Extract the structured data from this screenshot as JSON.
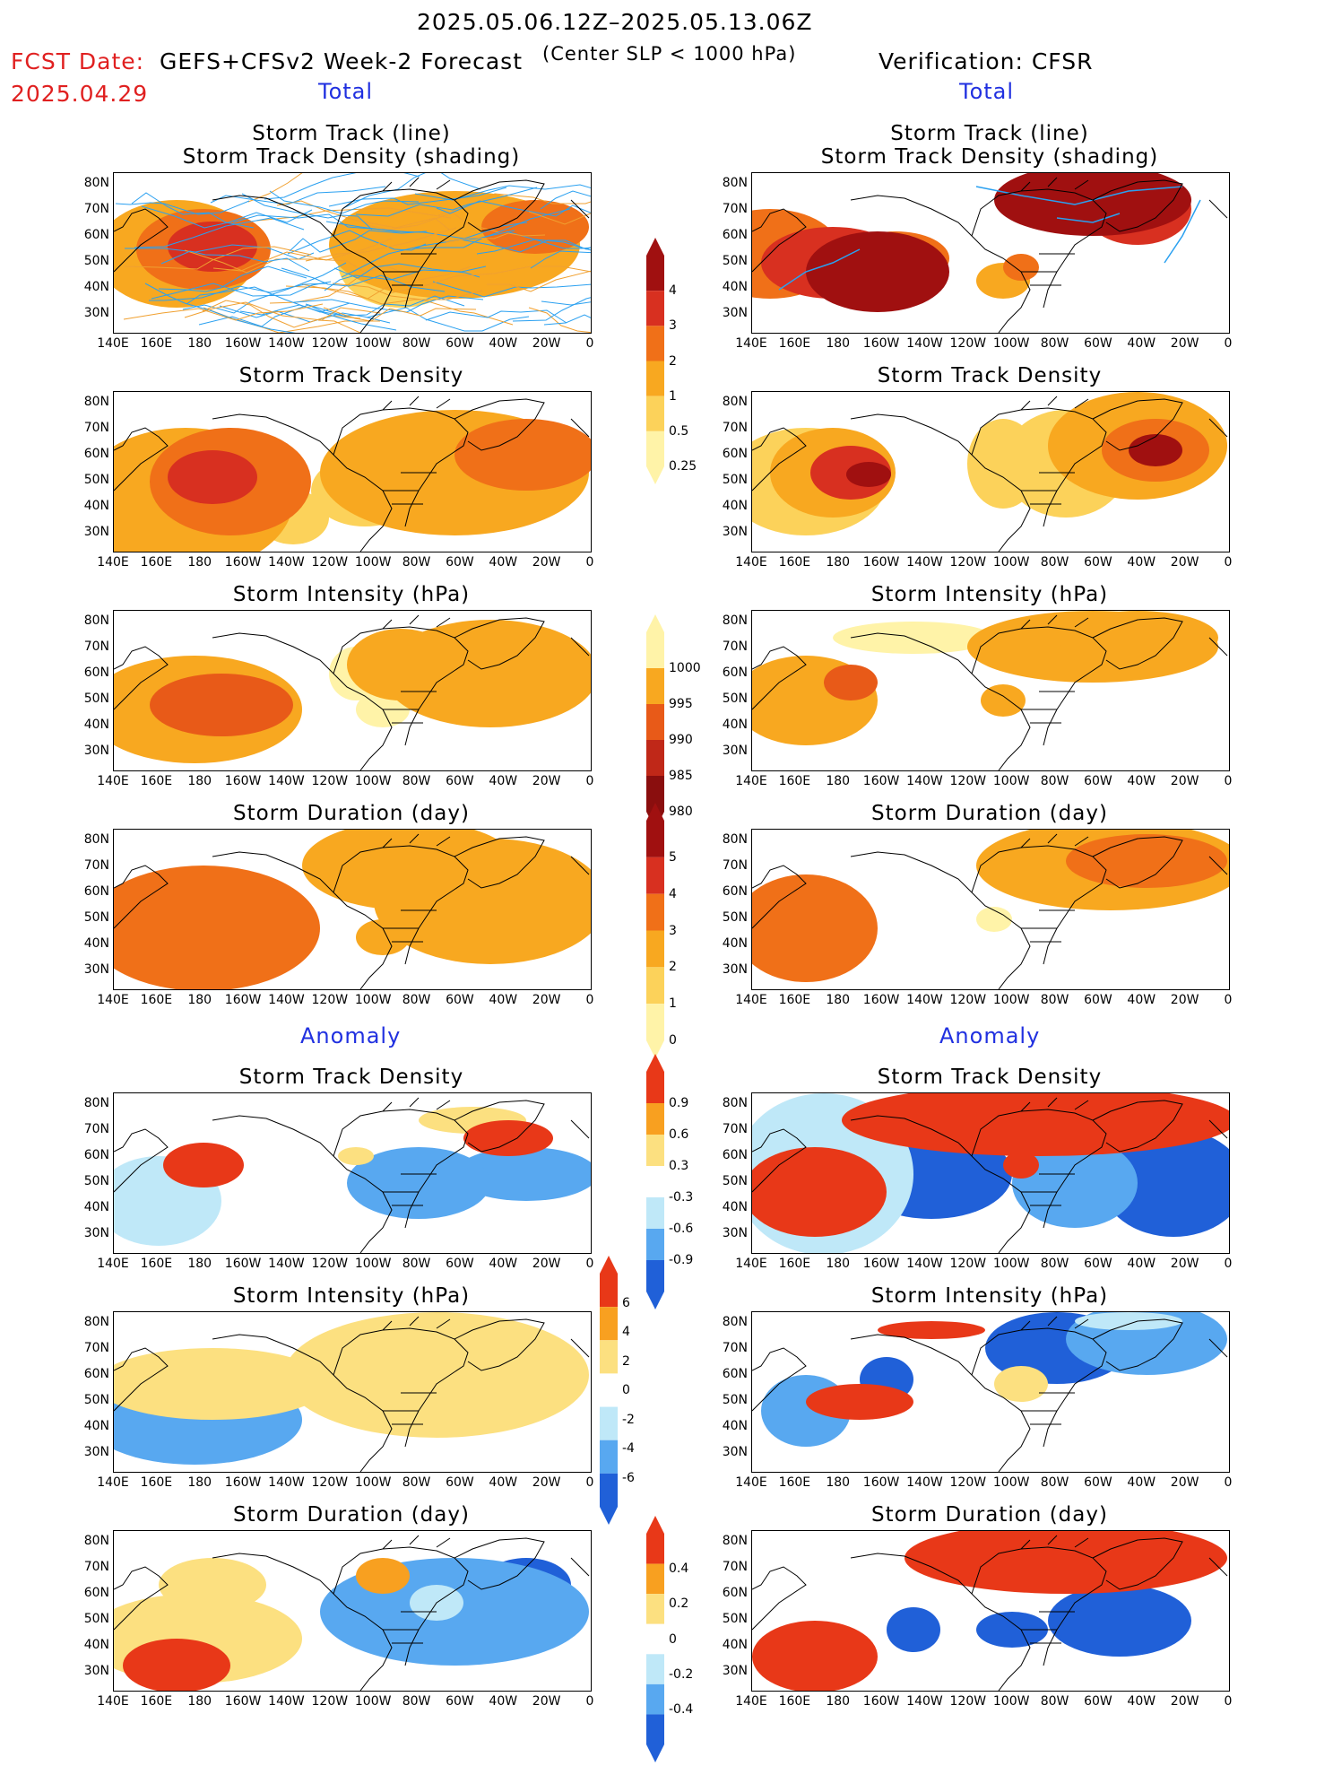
{
  "header": {
    "period": "2025.05.06.12Z–2025.05.13.06Z",
    "fcst_label": "FCST Date:",
    "fcst_date": "2025.04.29",
    "model": "GEFS+CFSv2 Week-2 Forecast",
    "condition": "(Center SLP < 1000 hPa)",
    "verification": "Verification: CFSR"
  },
  "sections": {
    "total": "Total",
    "anomaly": "Anomaly"
  },
  "panel_titles": {
    "track_line": "Storm Track (line)",
    "track_density_shading": "Storm Track Density (shading)",
    "track_density": "Storm Track Density",
    "intensity": "Storm Intensity (hPa)",
    "duration": "Storm Duration (day)"
  },
  "axes": {
    "lat_labels": [
      "80N",
      "70N",
      "60N",
      "50N",
      "40N",
      "30N"
    ],
    "lon_labels": [
      "140E",
      "160E",
      "180",
      "160W",
      "140W",
      "120W",
      "100W",
      "80W",
      "60W",
      "40W",
      "20W",
      "0"
    ]
  },
  "colorbars": {
    "density_total": {
      "labels": [
        "4",
        "3",
        "2",
        "1",
        "0.5",
        "0.25"
      ],
      "colors": [
        "#a01010",
        "#d83020",
        "#f07018",
        "#f8a820",
        "#fcd25a",
        "#fff3a8"
      ]
    },
    "intensity_total": {
      "labels": [
        "1000",
        "995",
        "990",
        "985",
        "980"
      ],
      "colors": [
        "#fff3a8",
        "#f8a820",
        "#e85a18",
        "#c02818",
        "#8a0e0e"
      ]
    },
    "duration_total": {
      "labels": [
        "5",
        "4",
        "3",
        "2",
        "1",
        "0"
      ],
      "colors": [
        "#a01010",
        "#d83020",
        "#f07018",
        "#f8a820",
        "#fcd25a",
        "#fff3a8"
      ]
    },
    "density_anom": {
      "labels": [
        "0.9",
        "0.6",
        "0.3",
        "-0.3",
        "-0.6",
        "-0.9"
      ],
      "colors": [
        "#e83818",
        "#f8a020",
        "#fce080",
        "#ffffff",
        "#bfe8f8",
        "#58a8f0",
        "#2060d8"
      ]
    },
    "intensity_anom": {
      "labels": [
        "6",
        "4",
        "2",
        "0",
        "-2",
        "-4",
        "-6"
      ],
      "colors": [
        "#e83818",
        "#f8a020",
        "#fce080",
        "#ffffff",
        "#bfe8f8",
        "#58a8f0",
        "#2060d8"
      ]
    },
    "duration_anom": {
      "labels": [
        "0.4",
        "0.2",
        "0",
        "-0.2",
        "-0.4"
      ],
      "colors": [
        "#e83818",
        "#f8a020",
        "#fce080",
        "#ffffff",
        "#bfe8f8",
        "#58a8f0",
        "#2060d8"
      ]
    }
  },
  "colors": {
    "header_red": "#e02020",
    "section_blue": "#2030e0",
    "track_blue": "#2aa0f0",
    "track_orange": "#f0a030"
  }
}
